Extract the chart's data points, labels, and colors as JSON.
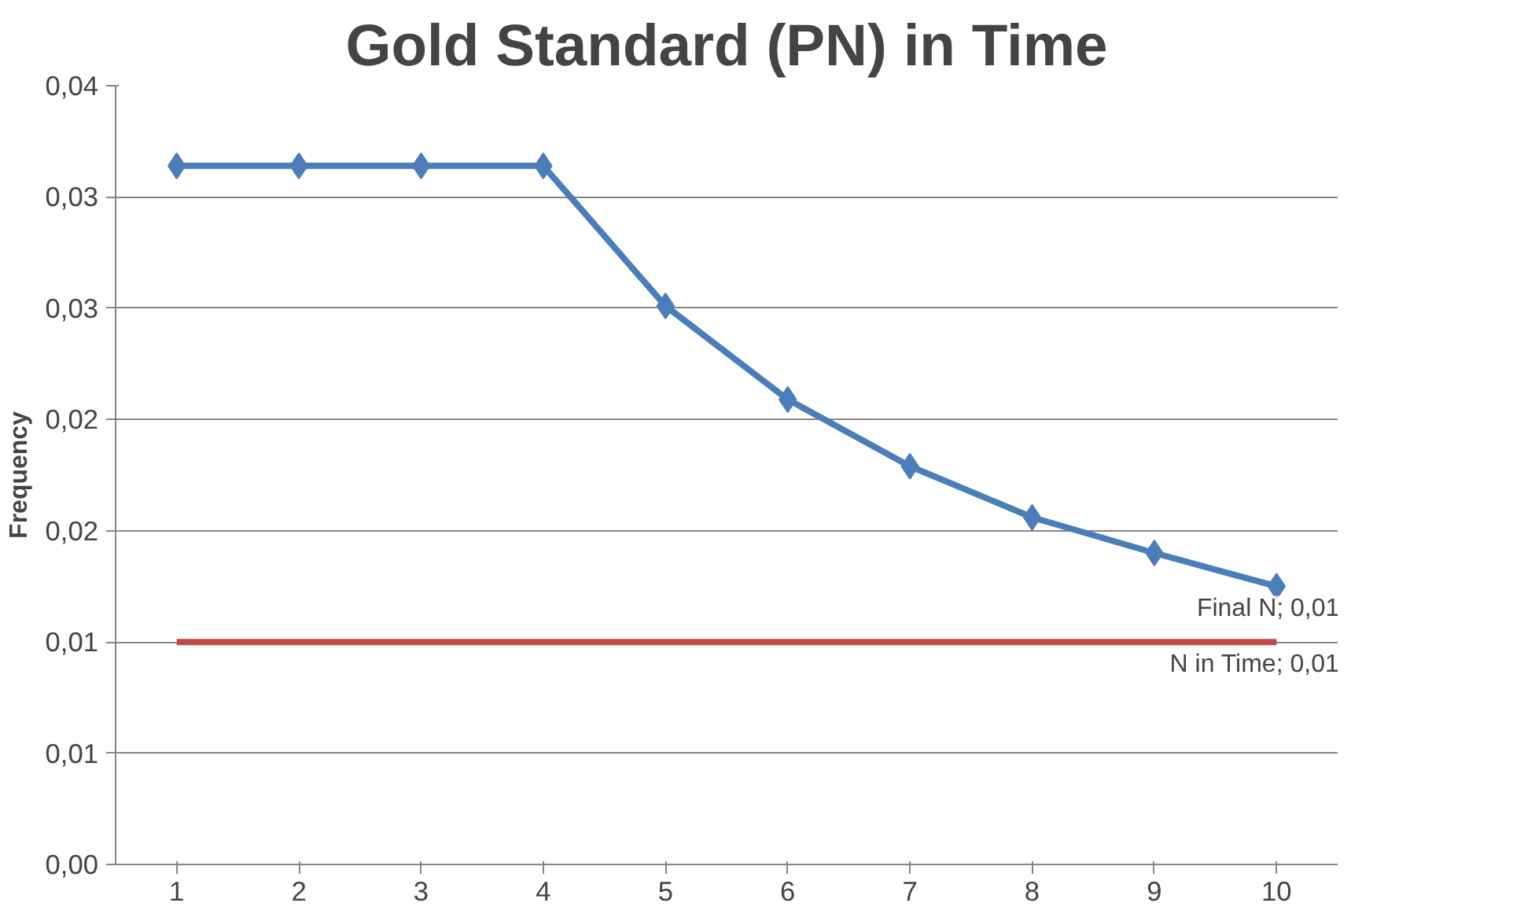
{
  "chart_data": {
    "type": "line",
    "title": "Gold Standard (PN) in Time",
    "ylabel": "Frequency",
    "categories": [
      "1",
      "2",
      "3",
      "4",
      "5",
      "6",
      "7",
      "8",
      "9",
      "10"
    ],
    "series": [
      {
        "name": "Final N",
        "color": "#4a7ebb",
        "marker": "diamond",
        "values": [
          0.0314,
          0.0314,
          0.0314,
          0.0314,
          0.0251,
          0.0209,
          0.0179,
          0.0156,
          0.014,
          0.0125
        ],
        "value_labels": [
          null,
          null,
          null,
          null,
          null,
          null,
          null,
          null,
          null,
          "; 0,01"
        ]
      },
      {
        "name": "N in Time",
        "color": "#be4b48",
        "marker": "none",
        "values": [
          0.01,
          0.01,
          0.01,
          0.01,
          0.01,
          0.01,
          0.01,
          0.01,
          0.01,
          0.01
        ],
        "value_labels": [
          null,
          null,
          null,
          null,
          null,
          null,
          null,
          null,
          null,
          "; 0,01"
        ]
      }
    ],
    "ylim": [
      0,
      0.035
    ],
    "yticks": [
      {
        "value": 0,
        "label": "0,00"
      },
      {
        "value": 0.005,
        "label": "0,01"
      },
      {
        "value": 0.01,
        "label": "0,01"
      },
      {
        "value": 0.015,
        "label": "0,02"
      },
      {
        "value": 0.02,
        "label": "0,02"
      },
      {
        "value": 0.025,
        "label": "0,03"
      },
      {
        "value": 0.03,
        "label": "0,03"
      },
      {
        "value": 0.035,
        "label": "0,04"
      }
    ],
    "grid": "y",
    "legend": false
  }
}
